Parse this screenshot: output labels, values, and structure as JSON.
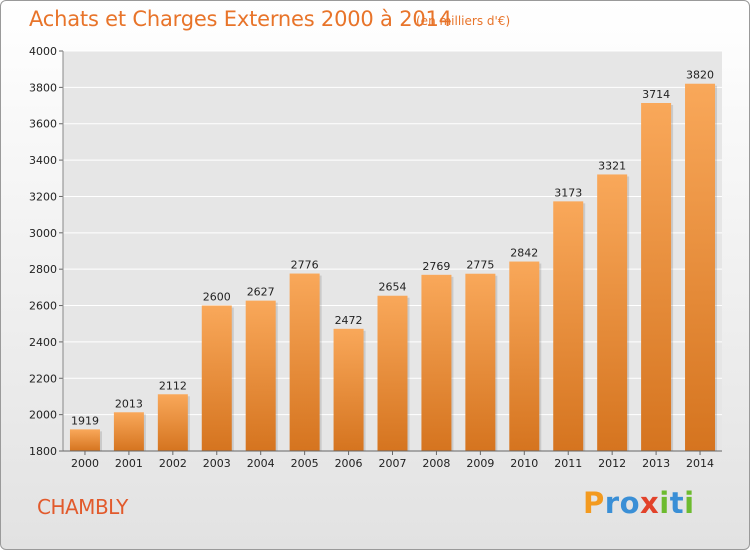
{
  "header": {
    "title": "Achats et Charges Externes 2000 à 2014",
    "subtitle": "(en milliers d'€)"
  },
  "footer": {
    "city": "CHAMBLY",
    "brand": "Proxiti",
    "brand_letters": [
      {
        "ch": "P",
        "color": "#f39a1f"
      },
      {
        "ch": "r",
        "color": "#3a8fd6"
      },
      {
        "ch": "o",
        "color": "#3a8fd6"
      },
      {
        "ch": "x",
        "color": "#e2422a"
      },
      {
        "ch": "i",
        "color": "#6dbb2f"
      },
      {
        "ch": "t",
        "color": "#3a8fd6"
      },
      {
        "ch": "i",
        "color": "#6dbb2f"
      }
    ]
  },
  "colors": {
    "title": "#e8742a",
    "city": "#e25a2c",
    "bar_top": "#f9a85a",
    "bar_bottom": "#d5741f",
    "plot_bg": "#e6e6e6",
    "grid": "#ffffff"
  },
  "chart_data": {
    "type": "bar",
    "title": "Achats et Charges Externes 2000 à 2014",
    "subtitle": "(en milliers d'€)",
    "categories": [
      "2000",
      "2001",
      "2002",
      "2003",
      "2004",
      "2005",
      "2006",
      "2007",
      "2008",
      "2009",
      "2010",
      "2011",
      "2012",
      "2013",
      "2014"
    ],
    "values": [
      1919,
      2013,
      2112,
      2600,
      2627,
      2776,
      2472,
      2654,
      2769,
      2775,
      2842,
      3173,
      3321,
      3714,
      3820
    ],
    "ylim": [
      1800,
      4000
    ],
    "yticks": [
      1800,
      2000,
      2200,
      2400,
      2600,
      2800,
      3000,
      3200,
      3400,
      3600,
      3800,
      4000
    ],
    "grid": true,
    "data_labels": true
  }
}
